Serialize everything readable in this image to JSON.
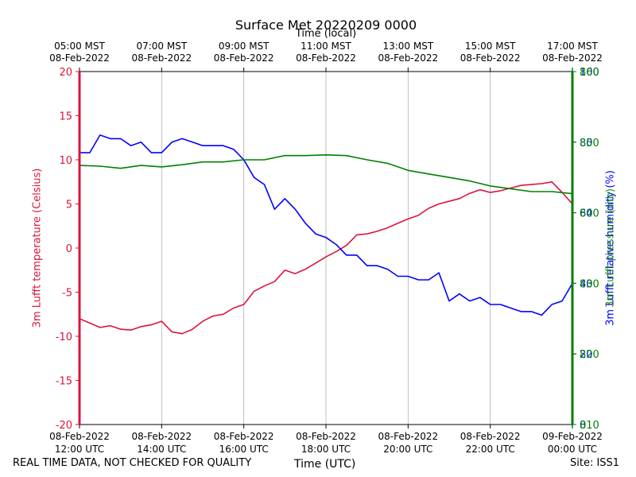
{
  "chart_data": {
    "type": "line",
    "title": "Surface Met 20220209 0000",
    "top_axis_label": "Time (local)",
    "xlabel": "Time (UTC)",
    "ylabel_left": "3m Lufft temperature (Celsius)",
    "ylabel_right_overlap": [
      "3m Lufft relative humidity (%)",
      "3m Lufft pressure (mb)"
    ],
    "footer_left": "REAL TIME DATA, NOT CHECKED FOR QUALITY",
    "footer_right": "Site: ISS1",
    "grid": "vertical",
    "x_range_hours_utc": [
      "08-Feb-2022 12:00 UTC",
      "09-Feb-2022 00:00 UTC"
    ],
    "x_ticks_utc": [
      {
        "date": "08-Feb-2022",
        "time": "12:00 UTC"
      },
      {
        "date": "08-Feb-2022",
        "time": "14:00 UTC"
      },
      {
        "date": "08-Feb-2022",
        "time": "16:00 UTC"
      },
      {
        "date": "08-Feb-2022",
        "time": "18:00 UTC"
      },
      {
        "date": "08-Feb-2022",
        "time": "20:00 UTC"
      },
      {
        "date": "08-Feb-2022",
        "time": "22:00 UTC"
      },
      {
        "date": "09-Feb-2022",
        "time": "00:00 UTC"
      }
    ],
    "x_ticks_local": [
      {
        "time": "05:00 MST",
        "date": "08-Feb-2022"
      },
      {
        "time": "07:00 MST",
        "date": "08-Feb-2022"
      },
      {
        "time": "09:00 MST",
        "date": "08-Feb-2022"
      },
      {
        "time": "11:00 MST",
        "date": "08-Feb-2022"
      },
      {
        "time": "13:00 MST",
        "date": "08-Feb-2022"
      },
      {
        "time": "15:00 MST",
        "date": "08-Feb-2022"
      },
      {
        "time": "17:00 MST",
        "date": "08-Feb-2022"
      }
    ],
    "axes": {
      "left": {
        "range": [
          -20,
          20
        ],
        "ticks": [
          "-20",
          "-15",
          "-10",
          "-5",
          "0",
          "5",
          "10",
          "15",
          "20"
        ],
        "color": "#dc143c"
      },
      "rh": {
        "range": [
          0,
          100
        ],
        "ticks": [
          "0",
          "20",
          "40",
          "60",
          "80",
          "100"
        ],
        "color": "#0000ff"
      },
      "press": {
        "range": [
          810,
          860
        ],
        "ticks": [
          "810",
          "820",
          "830",
          "840",
          "850",
          "860"
        ],
        "color": "#008000"
      }
    },
    "series": [
      {
        "name": "temperature",
        "axis": "left",
        "color": "#dc143c",
        "x": [
          12.0,
          12.25,
          12.5,
          12.75,
          13.0,
          13.25,
          13.5,
          13.75,
          14.0,
          14.25,
          14.5,
          14.75,
          15.0,
          15.25,
          15.5,
          15.75,
          16.0,
          16.25,
          16.5,
          16.75,
          17.0,
          17.25,
          17.5,
          17.75,
          18.0,
          18.25,
          18.5,
          18.75,
          19.0,
          19.25,
          19.5,
          19.75,
          20.0,
          20.25,
          20.5,
          20.75,
          21.0,
          21.25,
          21.5,
          21.75,
          22.0,
          22.25,
          22.5,
          22.75,
          23.0,
          23.25,
          23.5,
          23.75,
          24.0
        ],
        "y": [
          -8.0,
          -8.5,
          -9.0,
          -8.8,
          -9.2,
          -9.3,
          -8.9,
          -8.7,
          -8.3,
          -9.5,
          -9.7,
          -9.2,
          -8.3,
          -7.7,
          -7.5,
          -6.8,
          -6.4,
          -4.9,
          -4.3,
          -3.8,
          -2.5,
          -2.9,
          -2.4,
          -1.7,
          -1.0,
          -0.4,
          0.3,
          1.5,
          1.6,
          1.9,
          2.3,
          2.8,
          3.3,
          3.7,
          4.5,
          5.0,
          5.3,
          5.6,
          6.2,
          6.6,
          6.3,
          6.5,
          6.8,
          7.1,
          7.2,
          7.3,
          7.5,
          6.3,
          5.0
        ]
      },
      {
        "name": "relative humidity",
        "axis": "rh",
        "color": "#0000ff",
        "x": [
          12.0,
          12.25,
          12.5,
          12.75,
          13.0,
          13.25,
          13.5,
          13.75,
          14.0,
          14.25,
          14.5,
          14.75,
          15.0,
          15.25,
          15.5,
          15.75,
          16.0,
          16.25,
          16.5,
          16.75,
          17.0,
          17.25,
          17.5,
          17.75,
          18.0,
          18.25,
          18.5,
          18.75,
          19.0,
          19.25,
          19.5,
          19.75,
          20.0,
          20.25,
          20.5,
          20.75,
          21.0,
          21.25,
          21.5,
          21.75,
          22.0,
          22.25,
          22.5,
          22.75,
          23.0,
          23.25,
          23.5,
          23.75,
          24.0
        ],
        "y": [
          77,
          77,
          82,
          81,
          81,
          79,
          80,
          77,
          77,
          80,
          81,
          80,
          79,
          79,
          79,
          78,
          75,
          70,
          68,
          61,
          64,
          61,
          57,
          54,
          53,
          51,
          48,
          48,
          45,
          45,
          44,
          42,
          42,
          41,
          41,
          43,
          35,
          37,
          35,
          36,
          34,
          34,
          33,
          32,
          32,
          31,
          34,
          35,
          40
        ]
      },
      {
        "name": "pressure",
        "axis": "press",
        "color": "#008000",
        "x": [
          12.0,
          12.5,
          13.0,
          13.5,
          14.0,
          14.5,
          15.0,
          15.5,
          16.0,
          16.5,
          17.0,
          17.5,
          18.0,
          18.5,
          19.0,
          19.5,
          20.0,
          20.5,
          21.0,
          21.5,
          22.0,
          22.5,
          23.0,
          23.5,
          24.0
        ],
        "y": [
          846.7,
          846.6,
          846.3,
          846.7,
          846.5,
          846.8,
          847.2,
          847.2,
          847.5,
          847.5,
          848.1,
          848.1,
          848.2,
          848.1,
          847.5,
          847.0,
          846.0,
          845.5,
          845.0,
          844.5,
          843.8,
          843.4,
          843.0,
          843.0,
          842.7
        ]
      }
    ]
  }
}
